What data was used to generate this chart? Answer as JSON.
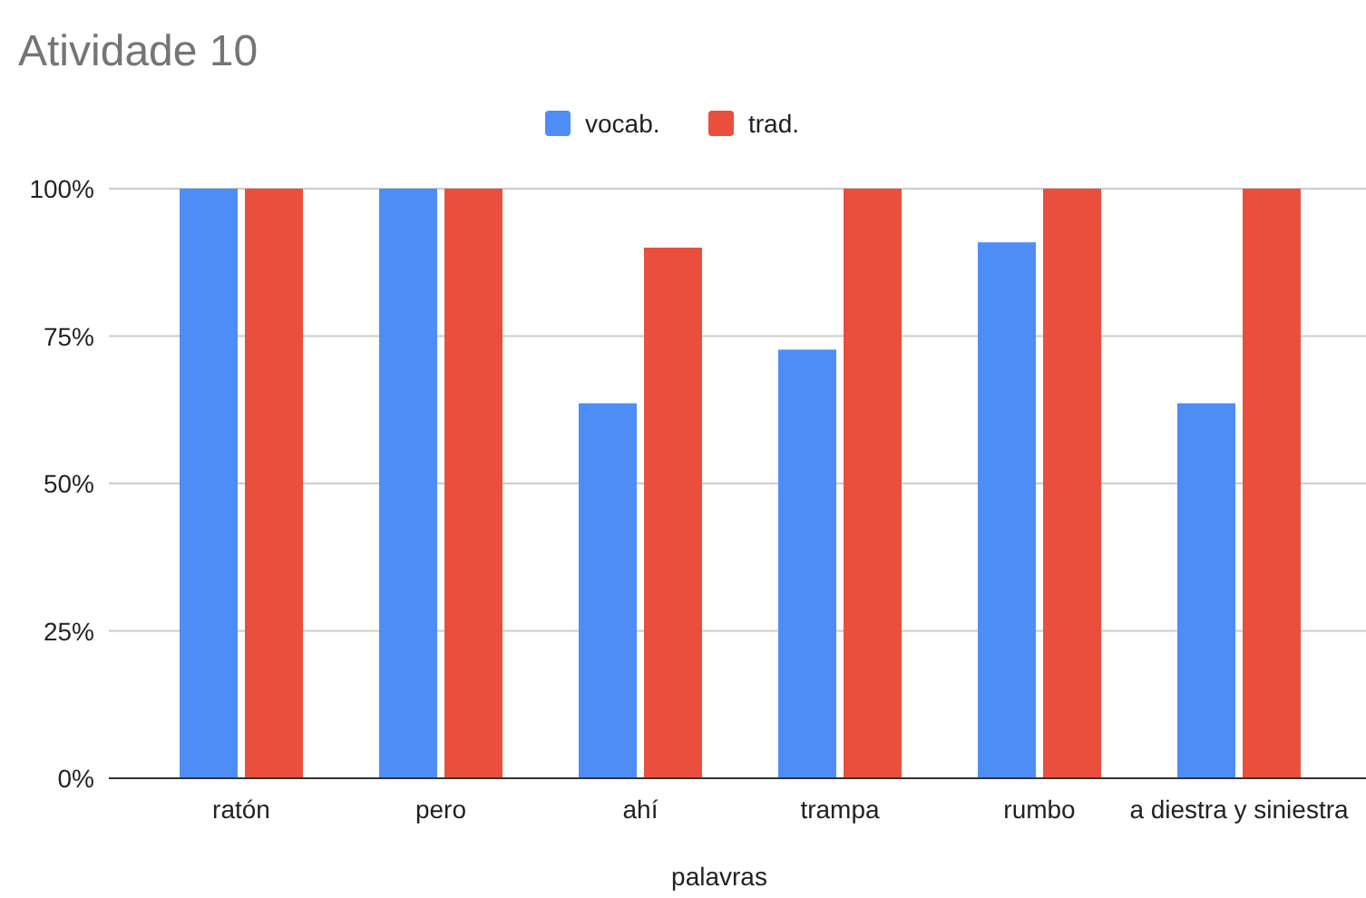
{
  "chart_data": {
    "type": "bar",
    "title": "Atividade 10",
    "xlabel": "palavras",
    "categories": [
      "ratón",
      "pero",
      "ahí",
      "trampa",
      "rumbo",
      "a diestra y siniestra"
    ],
    "series": [
      {
        "name": "vocab.",
        "color": "#4e8df5",
        "values": [
          100,
          100,
          63.6,
          72.7,
          90.9,
          63.6
        ]
      },
      {
        "name": "trad.",
        "color": "#ea4f3d",
        "values": [
          100,
          100,
          90,
          100,
          100,
          100
        ]
      }
    ],
    "ylim": [
      0,
      100
    ],
    "yticks": [
      {
        "value": 0,
        "label": "0%"
      },
      {
        "value": 25,
        "label": "25%"
      },
      {
        "value": 50,
        "label": "50%"
      },
      {
        "value": 75,
        "label": "75%"
      },
      {
        "value": 100,
        "label": "100%"
      }
    ],
    "grid": "y",
    "legend": "top"
  }
}
